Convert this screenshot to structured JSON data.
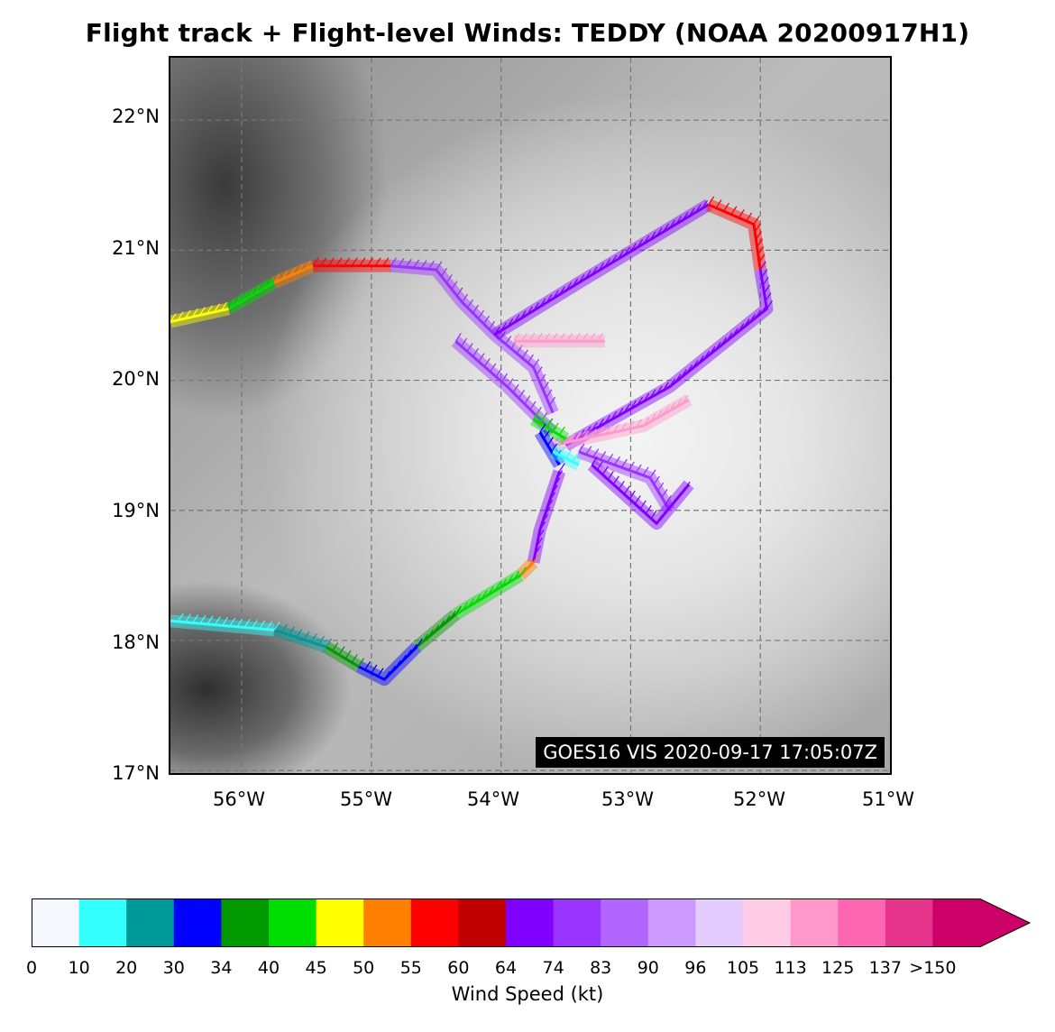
{
  "title": "Flight track + Flight-level Winds: TEDDY (NOAA 20200917H1)",
  "map": {
    "lat_ticks": [
      "22°N",
      "21°N",
      "20°N",
      "19°N",
      "18°N",
      "17°N"
    ],
    "lon_ticks": [
      "56°W",
      "55°W",
      "54°W",
      "53°W",
      "52°W",
      "51°W"
    ],
    "lat_range": [
      16.98,
      22.48
    ],
    "lon_range": [
      -56.55,
      -51.0
    ],
    "gridlines": "dashed gray",
    "source_label": "GOES16 VIS 2020-09-17 17:05:07Z"
  },
  "colorbar": {
    "label": "Wind Speed (kt)",
    "tick_labels": [
      "0",
      "10",
      "20",
      "30",
      "34",
      "40",
      "45",
      "50",
      "55",
      "60",
      "64",
      "74",
      "83",
      "90",
      "96",
      "105",
      "113",
      "125",
      "137",
      ">150"
    ],
    "colors": [
      "#f5f8fc",
      "#33ffff",
      "#009999",
      "#0000ff",
      "#009900",
      "#00dd00",
      "#ffff00",
      "#ff8000",
      "#ff0000",
      "#c00000",
      "#8000ff",
      "#9933ff",
      "#b266ff",
      "#cc99ff",
      "#e5ccff",
      "#ffcce5",
      "#ff99cc",
      "#ff66b2",
      "#e6338c",
      "#cc0066"
    ]
  },
  "track": {
    "segments": [
      {
        "color": "#ffff00",
        "pts": [
          [
            -56.55,
            20.45
          ],
          [
            -56.1,
            20.55
          ]
        ]
      },
      {
        "color": "#00dd00",
        "pts": [
          [
            -56.1,
            20.55
          ],
          [
            -55.75,
            20.75
          ]
        ]
      },
      {
        "color": "#ff8000",
        "pts": [
          [
            -55.75,
            20.75
          ],
          [
            -55.45,
            20.88
          ]
        ]
      },
      {
        "color": "#ff0000",
        "pts": [
          [
            -55.45,
            20.88
          ],
          [
            -54.85,
            20.88
          ]
        ]
      },
      {
        "color": "#9933ff",
        "pts": [
          [
            -54.85,
            20.88
          ],
          [
            -54.5,
            20.85
          ],
          [
            -54.3,
            20.6
          ],
          [
            -54.05,
            20.35
          ],
          [
            -53.75,
            20.1
          ],
          [
            -53.6,
            19.75
          ]
        ]
      },
      {
        "color": "#8000ff",
        "pts": [
          [
            -54.05,
            20.35
          ],
          [
            -53.4,
            20.75
          ],
          [
            -52.4,
            21.35
          ]
        ]
      },
      {
        "color": "#ff0000",
        "pts": [
          [
            -52.4,
            21.35
          ],
          [
            -52.05,
            21.2
          ],
          [
            -52.0,
            20.85
          ]
        ]
      },
      {
        "color": "#8000ff",
        "pts": [
          [
            -52.0,
            20.85
          ],
          [
            -51.95,
            20.55
          ],
          [
            -52.7,
            19.95
          ],
          [
            -53.5,
            19.5
          ]
        ]
      },
      {
        "color": "#9933ff",
        "pts": [
          [
            -54.35,
            20.3
          ],
          [
            -53.95,
            19.95
          ],
          [
            -53.6,
            19.6
          ]
        ]
      },
      {
        "color": "#ff99cc",
        "pts": [
          [
            -53.9,
            20.3
          ],
          [
            -53.2,
            20.3
          ]
        ]
      },
      {
        "color": "#ff99cc",
        "pts": [
          [
            -53.6,
            19.5
          ],
          [
            -52.9,
            19.65
          ],
          [
            -52.55,
            19.85
          ]
        ]
      },
      {
        "color": "#9933ff",
        "pts": [
          [
            -53.4,
            19.45
          ],
          [
            -52.85,
            19.25
          ],
          [
            -52.7,
            19.0
          ]
        ]
      },
      {
        "color": "#8000ff",
        "pts": [
          [
            -53.3,
            19.35
          ],
          [
            -52.8,
            18.9
          ],
          [
            -52.55,
            19.2
          ]
        ]
      },
      {
        "color": "#00dd00",
        "pts": [
          [
            -53.75,
            19.7
          ],
          [
            -53.5,
            19.55
          ]
        ]
      },
      {
        "color": "#0000ff",
        "pts": [
          [
            -53.7,
            19.6
          ],
          [
            -53.55,
            19.35
          ]
        ]
      },
      {
        "color": "#33ffff",
        "pts": [
          [
            -53.6,
            19.45
          ],
          [
            -53.4,
            19.35
          ]
        ]
      },
      {
        "color": "#8000ff",
        "pts": [
          [
            -53.55,
            19.3
          ],
          [
            -53.7,
            18.85
          ],
          [
            -53.75,
            18.6
          ]
        ]
      },
      {
        "color": "#ff8000",
        "pts": [
          [
            -53.75,
            18.6
          ],
          [
            -53.85,
            18.5
          ]
        ]
      },
      {
        "color": "#00dd00",
        "pts": [
          [
            -53.85,
            18.5
          ],
          [
            -54.35,
            18.2
          ]
        ]
      },
      {
        "color": "#009900",
        "pts": [
          [
            -54.35,
            18.2
          ],
          [
            -54.65,
            17.95
          ]
        ]
      },
      {
        "color": "#0000ff",
        "pts": [
          [
            -54.65,
            17.95
          ],
          [
            -54.9,
            17.7
          ],
          [
            -55.1,
            17.8
          ]
        ]
      },
      {
        "color": "#009900",
        "pts": [
          [
            -55.1,
            17.8
          ],
          [
            -55.35,
            17.95
          ]
        ]
      },
      {
        "color": "#009999",
        "pts": [
          [
            -55.35,
            17.95
          ],
          [
            -55.75,
            18.08
          ]
        ]
      },
      {
        "color": "#33ffff",
        "pts": [
          [
            -55.75,
            18.08
          ],
          [
            -56.55,
            18.15
          ]
        ]
      }
    ]
  }
}
